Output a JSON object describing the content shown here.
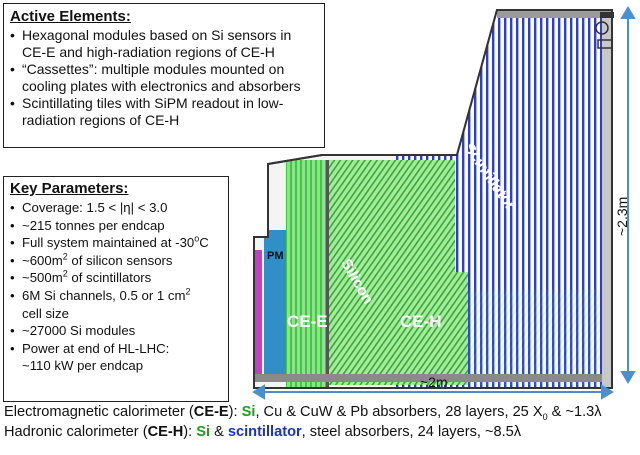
{
  "active": {
    "title": "Active Elements:",
    "items": [
      "Hexagonal modules based on Si sensors in CE-E and high-radiation regions of CE-H",
      "“Cassettes”: multiple modules mounted on cooling plates with electronics and absorbers",
      "Scintillating tiles with SiPM readout in low-radiation regions of CE-H"
    ]
  },
  "params": {
    "title": "Key Parameters:",
    "coverage_a": "Coverage: 1.5 < |η| < 3.0",
    "tonnes": "~215 tonnes per endcap",
    "temp_a": "Full system maintained at -30",
    "temp_sup": "o",
    "temp_b": "C",
    "si_area_a": "~600m",
    "si_area_sup": "2",
    "si_area_b": " of silicon sensors",
    "sc_area_a": "~500m",
    "sc_area_sup": "2",
    "sc_area_b": " of scintillators",
    "channels_a": "6M Si channels, 0.5 or 1 cm",
    "channels_sup": "2",
    "channels_b": "cell size",
    "modules": "~27000 Si modules",
    "power_a": "Power at end of HL-LHC:",
    "power_b": "~110 kW per endcap"
  },
  "diagram": {
    "label_pm": "PM",
    "label_cee": "CE-E",
    "label_ceh": "CE-H",
    "label_silicon": "Silicon",
    "label_scint": "Scintillator",
    "dim_height": "~2.3m",
    "dim_width": "~2m"
  },
  "caption": {
    "em_a": "Electromagnetic calorimeter (",
    "em_b": "CE-E",
    "em_c": "): ",
    "em_si": "Si",
    "em_d": ", Cu & CuW & Pb absorbers, 28 layers, 25 X",
    "em_sub": "0",
    "em_e": " & ~1.3λ",
    "had_a": "Hadronic calorimeter (",
    "had_b": "CE-H",
    "had_c": "): ",
    "had_si": "Si",
    "had_amp": " & ",
    "had_sc": "scintillator",
    "had_d": ", steel absorbers, 24 layers, ~8.5λ"
  },
  "colors": {
    "silicon": "#3fc93f",
    "scintillator": "#2a3fd0",
    "cee_blue": "#2f8fc6",
    "pm_magenta": "#c43fc4"
  }
}
